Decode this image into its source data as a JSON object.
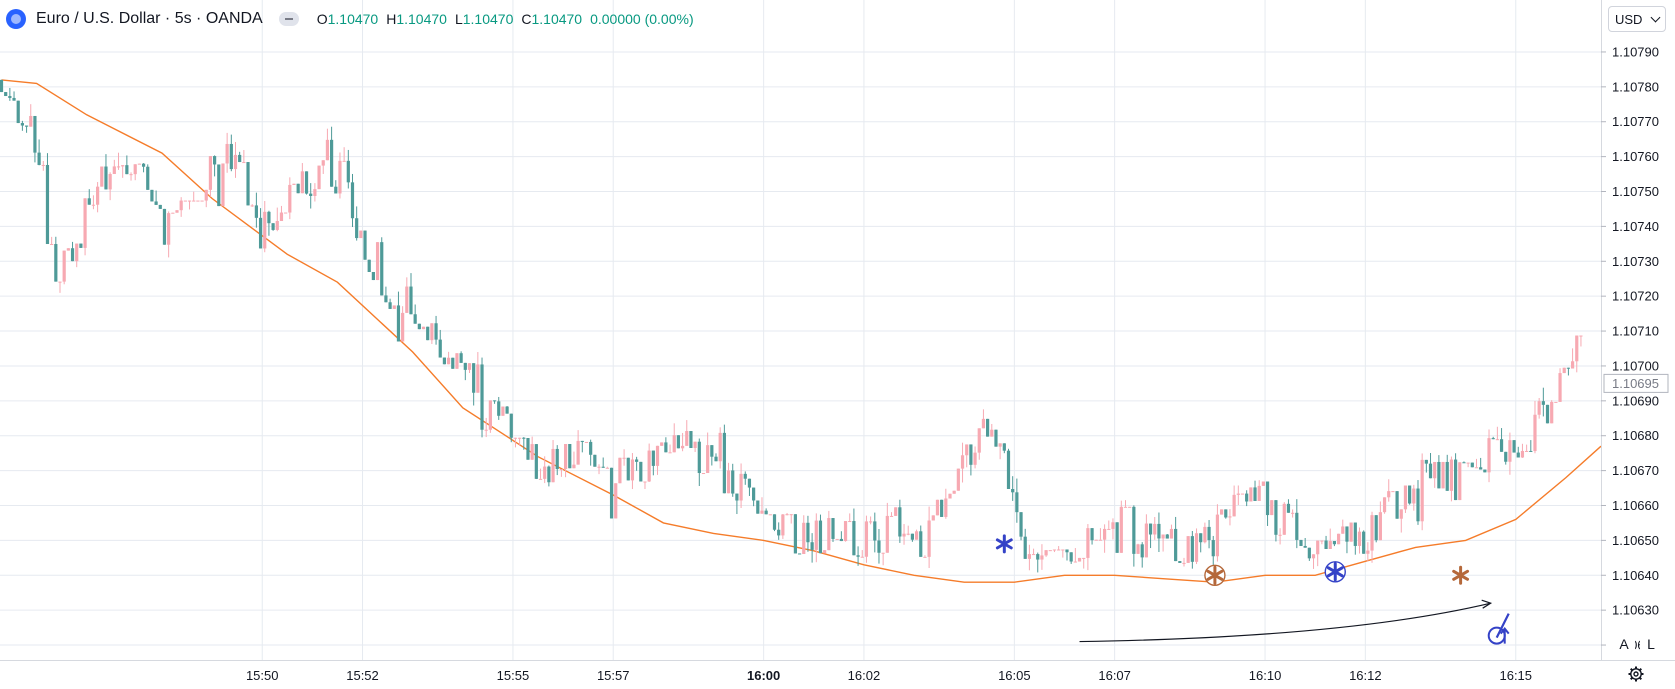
{
  "header": {
    "symbol": "Euro / U.S. Dollar · 5s · OANDA",
    "ohlc": [
      {
        "key": "O",
        "value": "1.10470"
      },
      {
        "key": "H",
        "value": "1.10470"
      },
      {
        "key": "L",
        "value": "1.10470"
      },
      {
        "key": "C",
        "value": "1.10470"
      }
    ],
    "change": "0.00000 (0.00%)",
    "logo_icon": "tradingview-logo-icon",
    "collapse_icon": "minus-icon"
  },
  "currency_button": {
    "label": "USD",
    "icon": "chevron-down-icon"
  },
  "scale_buttons": {
    "auto": "A",
    "log": "L"
  },
  "settings_icon": "gear-icon",
  "colors": {
    "up": "#f7a9b2",
    "down": "#4e9a98",
    "ma": "#f57c2a",
    "grid": "#e6eaf0",
    "price_label_bg": "#ffffff",
    "blue_annotation": "#3442c7",
    "brown_annotation": "#b5683a"
  },
  "chart_data": {
    "type": "candlestick",
    "symbol": "EURUSD",
    "interval": "5s",
    "x_ticks": [
      {
        "t": 5.0,
        "label": "15:50",
        "bold": false
      },
      {
        "t": 7.0,
        "label": "15:52",
        "bold": false
      },
      {
        "t": 10.0,
        "label": "15:55",
        "bold": false
      },
      {
        "t": 12.0,
        "label": "15:57",
        "bold": false
      },
      {
        "t": 15.0,
        "label": "16:00",
        "bold": true
      },
      {
        "t": 17.0,
        "label": "16:02",
        "bold": false
      },
      {
        "t": 20.0,
        "label": "16:05",
        "bold": false
      },
      {
        "t": 22.0,
        "label": "16:07",
        "bold": false
      },
      {
        "t": 25.0,
        "label": "16:10",
        "bold": false
      },
      {
        "t": 27.0,
        "label": "16:12",
        "bold": false
      },
      {
        "t": 30.0,
        "label": "16:15",
        "bold": false
      }
    ],
    "y_ticks": [
      "1.10790",
      "1.10780",
      "1.10770",
      "1.10760",
      "1.10750",
      "1.10740",
      "1.10730",
      "1.10720",
      "1.10710",
      "1.10700",
      "1.10690",
      "1.10680",
      "1.10670",
      "1.10660",
      "1.10650",
      "1.10640",
      "1.10630",
      "1.10620"
    ],
    "ylim": [
      1.10616,
      1.10794
    ],
    "xlim": [
      -0.23,
      31.7
    ],
    "last_price": "1.10695",
    "key_points": [
      {
        "t": -0.2,
        "p": 1.10778
      },
      {
        "t": 0.6,
        "p": 1.10765
      },
      {
        "t": 0.9,
        "p": 1.10725
      },
      {
        "t": 1.3,
        "p": 1.10735
      },
      {
        "t": 1.9,
        "p": 1.10752
      },
      {
        "t": 2.6,
        "p": 1.1076
      },
      {
        "t": 3.2,
        "p": 1.10738
      },
      {
        "t": 3.8,
        "p": 1.10752
      },
      {
        "t": 4.4,
        "p": 1.10758
      },
      {
        "t": 5.1,
        "p": 1.10742
      },
      {
        "t": 5.6,
        "p": 1.10747
      },
      {
        "t": 6.2,
        "p": 1.10755
      },
      {
        "t": 6.8,
        "p": 1.10748
      },
      {
        "t": 7.3,
        "p": 1.10728
      },
      {
        "t": 7.8,
        "p": 1.10712
      },
      {
        "t": 8.5,
        "p": 1.10707
      },
      {
        "t": 9.1,
        "p": 1.10702
      },
      {
        "t": 9.6,
        "p": 1.10692
      },
      {
        "t": 10.2,
        "p": 1.10682
      },
      {
        "t": 10.6,
        "p": 1.10671
      },
      {
        "t": 11.2,
        "p": 1.10672
      },
      {
        "t": 11.7,
        "p": 1.10676
      },
      {
        "t": 12.1,
        "p": 1.10667
      },
      {
        "t": 12.5,
        "p": 1.10671
      },
      {
        "t": 13.0,
        "p": 1.10676
      },
      {
        "t": 13.6,
        "p": 1.10676
      },
      {
        "t": 14.2,
        "p": 1.1067
      },
      {
        "t": 14.6,
        "p": 1.10664
      },
      {
        "t": 15.0,
        "p": 1.10661
      },
      {
        "t": 15.5,
        "p": 1.10652
      },
      {
        "t": 16.1,
        "p": 1.10652
      },
      {
        "t": 16.6,
        "p": 1.10653
      },
      {
        "t": 17.1,
        "p": 1.1065
      },
      {
        "t": 17.7,
        "p": 1.10654
      },
      {
        "t": 18.2,
        "p": 1.1065
      },
      {
        "t": 18.8,
        "p": 1.10661
      },
      {
        "t": 19.3,
        "p": 1.1068
      },
      {
        "t": 19.8,
        "p": 1.10677
      },
      {
        "t": 20.3,
        "p": 1.10648
      },
      {
        "t": 20.8,
        "p": 1.10648
      },
      {
        "t": 21.5,
        "p": 1.10651
      },
      {
        "t": 22.1,
        "p": 1.1065
      },
      {
        "t": 22.8,
        "p": 1.10651
      },
      {
        "t": 23.5,
        "p": 1.10649
      },
      {
        "t": 24.0,
        "p": 1.1065
      },
      {
        "t": 24.6,
        "p": 1.1066
      },
      {
        "t": 25.3,
        "p": 1.10664
      },
      {
        "t": 25.9,
        "p": 1.1065
      },
      {
        "t": 26.4,
        "p": 1.10654
      },
      {
        "t": 27.0,
        "p": 1.10649
      },
      {
        "t": 27.5,
        "p": 1.10659
      },
      {
        "t": 28.1,
        "p": 1.10667
      },
      {
        "t": 28.8,
        "p": 1.10672
      },
      {
        "t": 29.4,
        "p": 1.10675
      },
      {
        "t": 29.9,
        "p": 1.10672
      },
      {
        "t": 30.4,
        "p": 1.10681
      },
      {
        "t": 31.0,
        "p": 1.10695
      },
      {
        "t": 31.3,
        "p": 1.10708
      }
    ],
    "moving_average": [
      {
        "t": -0.2,
        "p": 1.10782
      },
      {
        "t": 0.5,
        "p": 1.10781
      },
      {
        "t": 1.5,
        "p": 1.10772
      },
      {
        "t": 3.0,
        "p": 1.10761
      },
      {
        "t": 4.0,
        "p": 1.10748
      },
      {
        "t": 5.5,
        "p": 1.10732
      },
      {
        "t": 6.5,
        "p": 1.10724
      },
      {
        "t": 8.0,
        "p": 1.10704
      },
      {
        "t": 9.0,
        "p": 1.10688
      },
      {
        "t": 10.5,
        "p": 1.10674
      },
      {
        "t": 12.0,
        "p": 1.10663
      },
      {
        "t": 13.0,
        "p": 1.10655
      },
      {
        "t": 14.0,
        "p": 1.10652
      },
      {
        "t": 15.0,
        "p": 1.1065
      },
      {
        "t": 16.0,
        "p": 1.10647
      },
      {
        "t": 17.0,
        "p": 1.10643
      },
      {
        "t": 18.0,
        "p": 1.1064
      },
      {
        "t": 19.0,
        "p": 1.10638
      },
      {
        "t": 20.0,
        "p": 1.10638
      },
      {
        "t": 21.0,
        "p": 1.1064
      },
      {
        "t": 22.0,
        "p": 1.1064
      },
      {
        "t": 23.0,
        "p": 1.10639
      },
      {
        "t": 24.0,
        "p": 1.10638
      },
      {
        "t": 25.0,
        "p": 1.1064
      },
      {
        "t": 26.0,
        "p": 1.1064
      },
      {
        "t": 27.0,
        "p": 1.10644
      },
      {
        "t": 28.0,
        "p": 1.10648
      },
      {
        "t": 29.0,
        "p": 1.1065
      },
      {
        "t": 30.0,
        "p": 1.10656
      },
      {
        "t": 31.0,
        "p": 1.10668
      },
      {
        "t": 31.7,
        "p": 1.10677
      }
    ],
    "trendline": {
      "from": {
        "t": 21.3,
        "p": 1.10621
      },
      "to": {
        "t": 29.5,
        "p": 1.10632
      }
    },
    "markers": [
      {
        "t": 19.8,
        "p": 1.10649,
        "icon": "asterisk-icon",
        "color": "blue",
        "circled": false
      },
      {
        "t": 24.0,
        "p": 1.1064,
        "icon": "asterisk-icon",
        "color": "brown",
        "circled": true
      },
      {
        "t": 26.4,
        "p": 1.10641,
        "icon": "asterisk-icon",
        "color": "blue",
        "circled": true
      },
      {
        "t": 28.9,
        "p": 1.1064,
        "icon": "asterisk-icon",
        "color": "brown",
        "circled": false
      },
      {
        "t": 29.7,
        "p": 1.10625,
        "icon": "thumb-up-icon",
        "color": "blue",
        "circled": true
      }
    ]
  }
}
